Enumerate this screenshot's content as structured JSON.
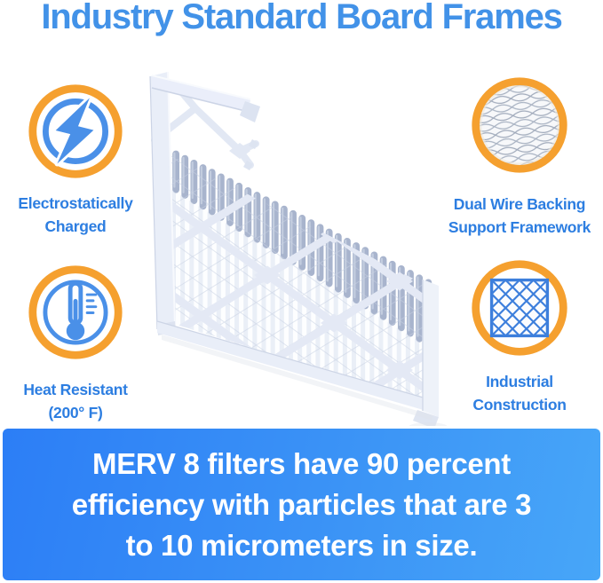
{
  "title": {
    "text": "Industry Standard Board Frames"
  },
  "features": [
    {
      "id": "electrostatically-charged",
      "icon": "lightning-bolt-icon",
      "lines": [
        "Electrostatically",
        "Charged"
      ]
    },
    {
      "id": "dual-wire-backing",
      "icon": "wire-mesh-icon",
      "lines": [
        "Dual Wire Backing",
        "Support Framework"
      ]
    },
    {
      "id": "heat-resistant",
      "icon": "thermometer-icon",
      "lines": [
        "Heat Resistant",
        "(200° F)"
      ]
    },
    {
      "id": "industrial-construction",
      "icon": "lattice-grid-icon",
      "lines": [
        "Industrial",
        "Construction"
      ]
    }
  ],
  "product_image": {
    "alt": "White pleated air filter with cut-away board frame and wire lattice"
  },
  "banner": {
    "lines": [
      "MERV 8 filters have 90 percent",
      "efficiency with particles that are 3",
      "to 10 micrometers in size."
    ]
  },
  "palette": {
    "title_blue": "#4292e8",
    "label_blue": "#2d7ee1",
    "icon_blue": "#4a90e8",
    "ring_orange": "#f5a02f",
    "banner_gradient_start": "#2c7ef6",
    "banner_gradient_end": "#47a6f8",
    "banner_text": "#ffffff",
    "background": "#ffffff"
  }
}
